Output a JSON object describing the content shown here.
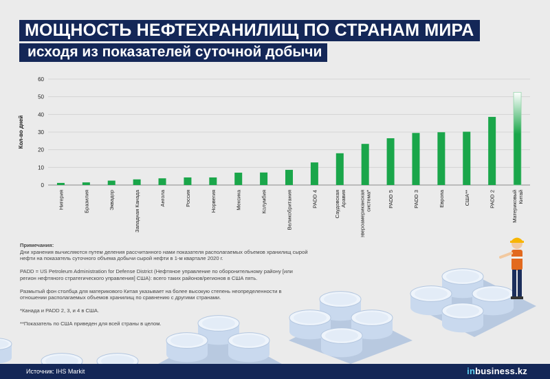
{
  "header": {
    "title": "МОЩНОСТЬ НЕФТЕХРАНИЛИЩ ПО СТРАНАМ МИРА",
    "subtitle": "исходя из показателей суточной добычи"
  },
  "notes": {
    "heading": "Примечания:",
    "p1": "Дни хранения вычисляются путем деления рассчитанного нами показателя располагаемых объемов хранилищ сырой нефти на показатель суточного объема добычи сырой нефти в 1-м квартале 2020 г.",
    "p2": "PADD = US Petroleum Administration for Defense District (Нефтяное управление по оборонительному району [или регион нефтяного стратегического управления] США): всего таких районов/регионов в США пять.",
    "p3": "Размытый фон столбца для материкового Китая указывает на более высокую степень неопределенности в отношении располагаемых объемов хранилищ по сравнению с другими странами.",
    "p4": "*Канада и PADD 2, 3, и 4 в США.",
    "p5": "**Показатель по США приведен для всей страны в целом."
  },
  "footer": {
    "source": "Источник: IHS Markit",
    "logo_in": "in",
    "logo_rest": "business.kz"
  },
  "colors": {
    "bar": "#1aa64a",
    "navy": "#142757",
    "accent": "#5fd0f2"
  },
  "chart_data": {
    "type": "bar",
    "ylabel": "Кол-во дней",
    "ylim": [
      0,
      60
    ],
    "yticks": [
      0,
      10,
      20,
      30,
      40,
      50,
      60
    ],
    "grid": true,
    "categories": [
      "Нигерия",
      "Бразилия",
      "Эквадор",
      "Западная Канада",
      "Ангола",
      "Россия",
      "Норвегия",
      "Мексика",
      "Колумбия",
      "Великобритания",
      "PADD 4",
      "Саудовская Аравия",
      "Североамериканская система*",
      "PADD 5",
      "PADD 3",
      "Европа",
      "США**",
      "PADD 2",
      "Материковый Китай"
    ],
    "values": [
      1.2,
      1.5,
      2.5,
      3.2,
      3.8,
      4.3,
      4.3,
      7,
      7.1,
      8.6,
      12.8,
      18,
      23.3,
      26.5,
      29.5,
      29.9,
      30.2,
      38.6,
      52.5
    ]
  }
}
